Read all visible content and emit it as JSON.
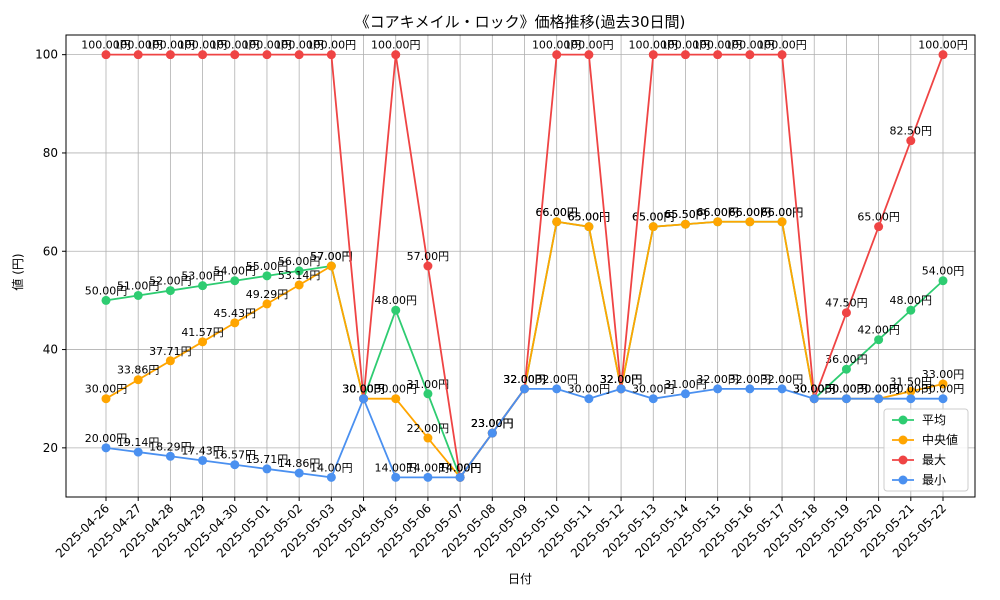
{
  "chart_data": {
    "type": "line",
    "title": "《コアキメイル・ロック》価格推移(過去30日間)",
    "xlabel": "日付",
    "ylabel": "値 (円)",
    "ylim": [
      10,
      104
    ],
    "yticks": [
      20,
      40,
      60,
      80,
      100
    ],
    "grid": true,
    "legend_position": "bottom-right",
    "value_suffix": "円",
    "categories": [
      "2025-04-26",
      "2025-04-27",
      "2025-04-28",
      "2025-04-29",
      "2025-04-30",
      "2025-05-01",
      "2025-05-02",
      "2025-05-03",
      "2025-05-04",
      "2025-05-05",
      "2025-05-06",
      "2025-05-07",
      "2025-05-08",
      "2025-05-09",
      "2025-05-10",
      "2025-05-11",
      "2025-05-12",
      "2025-05-13",
      "2025-05-14",
      "2025-05-15",
      "2025-05-16",
      "2025-05-17",
      "2025-05-18",
      "2025-05-19",
      "2025-05-20",
      "2025-05-21",
      "2025-05-22"
    ],
    "series": [
      {
        "name": "平均",
        "color": "#2ecc71",
        "values": [
          50,
          51,
          52,
          53,
          54,
          55,
          56,
          57,
          30,
          48,
          31,
          14,
          23,
          32,
          66,
          65,
          32,
          65,
          65.5,
          66,
          66,
          66,
          30,
          36,
          42,
          48,
          54
        ]
      },
      {
        "name": "中央値",
        "color": "#ffa500",
        "values": [
          30,
          33.86,
          37.71,
          41.57,
          45.43,
          49.29,
          53.14,
          57,
          30,
          30,
          22,
          14,
          23,
          32,
          66,
          65,
          32,
          65,
          65.5,
          66,
          66,
          66,
          30,
          30,
          30,
          31.5,
          33
        ]
      },
      {
        "name": "最大",
        "color": "#ef4444",
        "values": [
          100,
          100,
          100,
          100,
          100,
          100,
          100,
          100,
          30,
          100,
          57,
          14,
          23,
          32,
          100,
          100,
          32,
          100,
          100,
          100,
          100,
          100,
          30,
          47.5,
          65,
          82.5,
          100
        ]
      },
      {
        "name": "最小",
        "color": "#4a90f0",
        "values": [
          20,
          19.14,
          18.29,
          17.43,
          16.57,
          15.71,
          14.86,
          14,
          30,
          14,
          14,
          14,
          23,
          32,
          32,
          30,
          32,
          30,
          31,
          32,
          32,
          32,
          30,
          30,
          30,
          30,
          30
        ]
      }
    ]
  }
}
